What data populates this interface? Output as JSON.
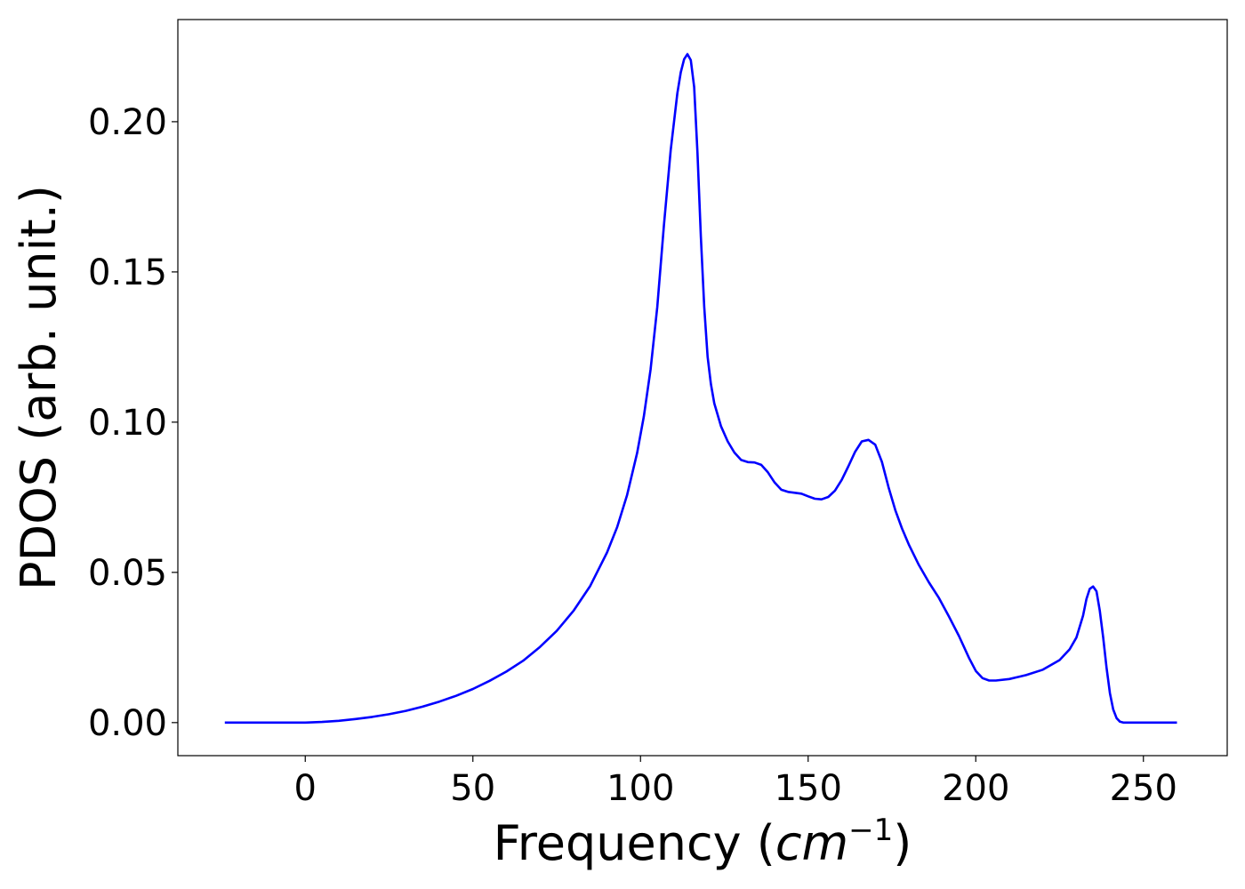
{
  "chart_data": {
    "type": "line",
    "title": "",
    "xlabel_main": "Frequency (",
    "xlabel_unit": "cm",
    "xlabel_exp": "−1",
    "xlabel_close": ")",
    "ylabel": "PDOS (arb. unit.)",
    "xlim": [
      -38,
      275
    ],
    "ylim": [
      -0.011,
      0.234
    ],
    "xticks": [
      0,
      50,
      100,
      150,
      200,
      250
    ],
    "xtick_labels": [
      "0",
      "50",
      "100",
      "150",
      "200",
      "250"
    ],
    "yticks": [
      0.0,
      0.05,
      0.1,
      0.15,
      0.2
    ],
    "ytick_labels": [
      "0.00",
      "0.05",
      "0.10",
      "0.15",
      "0.20"
    ],
    "grid": false,
    "legend": false,
    "series": [
      {
        "color": "#0000ff",
        "x": [
          -24,
          0,
          5,
          10,
          15,
          20,
          25,
          30,
          35,
          40,
          45,
          50,
          55,
          60,
          65,
          70,
          75,
          80,
          85,
          90,
          93,
          96,
          99,
          101,
          103,
          105,
          107,
          109,
          111,
          112,
          113,
          114,
          115,
          116,
          117,
          118,
          119,
          120,
          121,
          122,
          124,
          126,
          128,
          130,
          132,
          134,
          136,
          138,
          140,
          142,
          144,
          146,
          148,
          150,
          152,
          154,
          156,
          158,
          160,
          162,
          164,
          166,
          168,
          170,
          172,
          174,
          176,
          178,
          180,
          183,
          186,
          189,
          192,
          195,
          198,
          200,
          202,
          204,
          206,
          210,
          215,
          220,
          225,
          228,
          230,
          232,
          233,
          234,
          235,
          236,
          237,
          238,
          239,
          240,
          241,
          242,
          243,
          244,
          245,
          250,
          255,
          260
        ],
        "y": [
          0.0,
          0.0,
          0.0002,
          0.0006,
          0.0012,
          0.0019,
          0.0028,
          0.0039,
          0.0053,
          0.007,
          0.0089,
          0.0112,
          0.0139,
          0.017,
          0.0206,
          0.0252,
          0.0305,
          0.0372,
          0.0455,
          0.0566,
          0.065,
          0.0758,
          0.0898,
          0.1019,
          0.1176,
          0.1383,
          0.1656,
          0.1905,
          0.2095,
          0.2164,
          0.2208,
          0.2225,
          0.2205,
          0.2115,
          0.1897,
          0.1618,
          0.1384,
          0.1218,
          0.1127,
          0.1063,
          0.0987,
          0.0936,
          0.0899,
          0.0874,
          0.0867,
          0.0866,
          0.0858,
          0.0833,
          0.0799,
          0.0775,
          0.0768,
          0.0765,
          0.0762,
          0.0753,
          0.0745,
          0.0743,
          0.0751,
          0.0772,
          0.0808,
          0.0853,
          0.0901,
          0.0936,
          0.0941,
          0.0925,
          0.0868,
          0.0783,
          0.0707,
          0.0646,
          0.0593,
          0.0525,
          0.0467,
          0.0415,
          0.0353,
          0.0288,
          0.0215,
          0.0172,
          0.0148,
          0.014,
          0.014,
          0.0145,
          0.0158,
          0.0176,
          0.0208,
          0.0244,
          0.0283,
          0.0356,
          0.0411,
          0.0445,
          0.0453,
          0.0437,
          0.0373,
          0.0284,
          0.0183,
          0.0098,
          0.0044,
          0.0015,
          0.0003,
          0.0,
          0.0,
          0.0,
          0.0,
          0.0
        ]
      }
    ]
  }
}
